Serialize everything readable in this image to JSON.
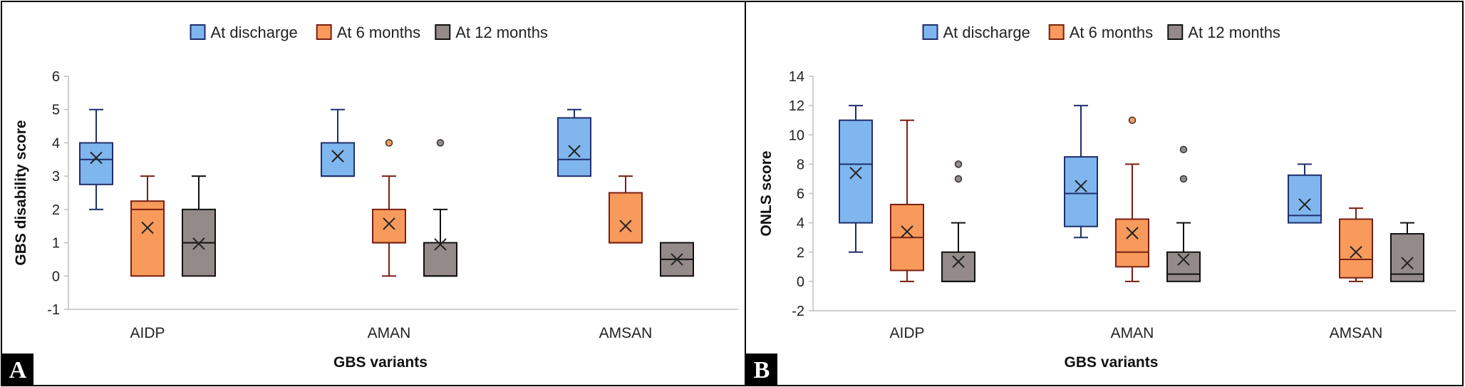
{
  "chart_data": [
    {
      "type": "boxplot",
      "panel_label": "A",
      "xlabel": "GBS variants",
      "ylabel": "GBS disability score",
      "ylim": [
        -1,
        6
      ],
      "yticks": [
        -1,
        0,
        1,
        2,
        3,
        4,
        5,
        6
      ],
      "categories": [
        "AIDP",
        "AMAN",
        "AMSAN"
      ],
      "legend_position": "top-center",
      "series": [
        {
          "name": "At discharge",
          "color": "#7fb6ee",
          "edge_color": "#1f2f6b",
          "boxes": [
            {
              "min": 2,
              "q1": 2.75,
              "median": 3.5,
              "q3": 4,
              "max": 5,
              "mean": 3.55,
              "outliers": []
            },
            {
              "min": 3,
              "q1": 3,
              "median": 3,
              "q3": 4,
              "max": 5,
              "mean": 3.6,
              "outliers": []
            },
            {
              "min": 3,
              "q1": 3,
              "median": 3.5,
              "q3": 4.75,
              "max": 5,
              "mean": 3.75,
              "outliers": []
            }
          ]
        },
        {
          "name": "At 6 months",
          "color": "#f79a5c",
          "edge_color": "#7a1f12",
          "boxes": [
            {
              "min": 0,
              "q1": 0,
              "median": 2,
              "q3": 2.25,
              "max": 3,
              "mean": 1.45,
              "outliers": []
            },
            {
              "min": 0,
              "q1": 1,
              "median": 1,
              "q3": 2,
              "max": 3,
              "mean": 1.57,
              "outliers": [
                4
              ]
            },
            {
              "min": 1,
              "q1": 1,
              "median": 1,
              "q3": 2.5,
              "max": 3,
              "mean": 1.5,
              "outliers": []
            }
          ]
        },
        {
          "name": "At 12 months",
          "color": "#948a8a",
          "edge_color": "#111111",
          "boxes": [
            {
              "min": 0,
              "q1": 0,
              "median": 1,
              "q3": 2,
              "max": 3,
              "mean": 0.97,
              "outliers": []
            },
            {
              "min": 0,
              "q1": 0,
              "median": 0,
              "q3": 1,
              "max": 2,
              "mean": 0.95,
              "outliers": [
                4
              ]
            },
            {
              "min": 0,
              "q1": 0,
              "median": 0.5,
              "q3": 1,
              "max": 1,
              "mean": 0.5,
              "outliers": []
            }
          ]
        }
      ]
    },
    {
      "type": "boxplot",
      "panel_label": "B",
      "xlabel": "GBS variants",
      "ylabel": "ONLS score",
      "ylim": [
        -2,
        14
      ],
      "yticks": [
        -2,
        0,
        2,
        4,
        6,
        8,
        10,
        12,
        14
      ],
      "categories": [
        "AIDP",
        "AMAN",
        "AMSAN"
      ],
      "legend_position": "top-center",
      "series": [
        {
          "name": "At discharge",
          "color": "#7fb6ee",
          "edge_color": "#1f2f6b",
          "boxes": [
            {
              "min": 2,
              "q1": 4,
              "median": 8,
              "q3": 11,
              "max": 12,
              "mean": 7.4,
              "outliers": []
            },
            {
              "min": 3,
              "q1": 3.75,
              "median": 6,
              "q3": 8.5,
              "max": 12,
              "mean": 6.5,
              "outliers": []
            },
            {
              "min": 4,
              "q1": 4,
              "median": 4.5,
              "q3": 7.25,
              "max": 8,
              "mean": 5.25,
              "outliers": []
            }
          ]
        },
        {
          "name": "At 6 months",
          "color": "#f79a5c",
          "edge_color": "#7a1f12",
          "boxes": [
            {
              "min": 0,
              "q1": 0.75,
              "median": 3,
              "q3": 5.25,
              "max": 11,
              "mean": 3.4,
              "outliers": []
            },
            {
              "min": 0,
              "q1": 1,
              "median": 2,
              "q3": 4.25,
              "max": 8,
              "mean": 3.3,
              "outliers": [
                11
              ]
            },
            {
              "min": 0,
              "q1": 0.25,
              "median": 1.5,
              "q3": 4.25,
              "max": 5,
              "mean": 2,
              "outliers": []
            }
          ]
        },
        {
          "name": "At 12 months",
          "color": "#948a8a",
          "edge_color": "#111111",
          "boxes": [
            {
              "min": 0,
              "q1": 0,
              "median": 0,
              "q3": 2,
              "max": 4,
              "mean": 1.35,
              "outliers": [
                7,
                8
              ]
            },
            {
              "min": 0,
              "q1": 0,
              "median": 0.5,
              "q3": 2,
              "max": 4,
              "mean": 1.5,
              "outliers": [
                7,
                9
              ]
            },
            {
              "min": 0,
              "q1": 0,
              "median": 0.5,
              "q3": 3.25,
              "max": 4,
              "mean": 1.25,
              "outliers": []
            }
          ]
        }
      ]
    }
  ]
}
